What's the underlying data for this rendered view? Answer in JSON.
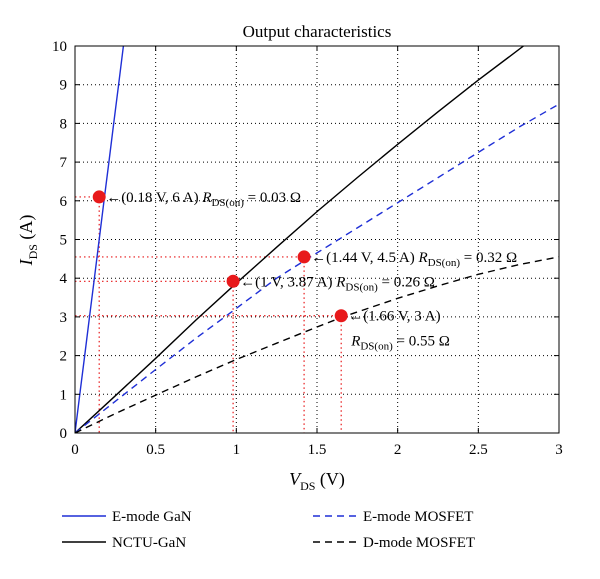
{
  "chart_data": {
    "type": "line",
    "title": "Output characteristics",
    "xlabel": {
      "main": "V",
      "sub": "DS",
      "unit": " (V)"
    },
    "ylabel": {
      "main": "I",
      "sub": "DS",
      "unit": " (A)"
    },
    "xlim": [
      0,
      3
    ],
    "ylim": [
      0,
      10
    ],
    "xticks": [
      "0",
      "0.5",
      "1",
      "1.5",
      "2",
      "2.5",
      "3"
    ],
    "yticks": [
      "0",
      "1",
      "2",
      "3",
      "4",
      "5",
      "6",
      "7",
      "8",
      "9",
      "10"
    ],
    "grid": true,
    "colors": {
      "blue": "#1f2fd6",
      "black": "#000000",
      "red": "#e8191b",
      "grid": "#000000"
    },
    "series": [
      {
        "name": "E-mode GaN",
        "color": "#1f2fd6",
        "dash": "solid",
        "x": [
          0,
          0.03,
          0.06,
          0.09,
          0.12,
          0.15,
          0.18,
          0.21,
          0.24,
          0.27,
          0.3
        ],
        "y": [
          0,
          1.0,
          2.0,
          3.0,
          4.0,
          5.0,
          6.0,
          7.0,
          8.0,
          9.0,
          10.0
        ]
      },
      {
        "name": "NCTU-GaN",
        "color": "#000000",
        "dash": "solid",
        "x": [
          0,
          0.25,
          0.5,
          0.75,
          1.0,
          1.25,
          1.5,
          1.75,
          2.0,
          2.25,
          2.5,
          2.78
        ],
        "y": [
          0,
          0.96,
          1.93,
          2.92,
          3.87,
          4.8,
          5.72,
          6.6,
          7.46,
          8.3,
          9.12,
          10.0
        ]
      },
      {
        "name": "E-mode MOSFET",
        "color": "#1f2fd6",
        "dash": "dashed",
        "x": [
          0,
          0.25,
          0.5,
          0.75,
          1.0,
          1.25,
          1.44,
          1.75,
          2.0,
          2.25,
          2.5,
          2.75,
          3.0
        ],
        "y": [
          0,
          0.82,
          1.64,
          2.45,
          3.22,
          4.0,
          4.5,
          5.3,
          5.95,
          6.6,
          7.25,
          7.9,
          8.5
        ]
      },
      {
        "name": "D-mode MOSFET",
        "color": "#000000",
        "dash": "dashed",
        "x": [
          0,
          0.25,
          0.5,
          0.75,
          1.0,
          1.25,
          1.5,
          1.66,
          2.0,
          2.25,
          2.5,
          2.75,
          3.0
        ],
        "y": [
          0,
          0.5,
          0.98,
          1.45,
          1.9,
          2.32,
          2.74,
          3.0,
          3.48,
          3.8,
          4.1,
          4.35,
          4.55
        ]
      }
    ],
    "points": [
      {
        "x": 0.15,
        "y": 6.1
      },
      {
        "x": 0.98,
        "y": 3.92
      },
      {
        "x": 1.42,
        "y": 4.55
      },
      {
        "x": 1.65,
        "y": 3.03
      }
    ],
    "annotations": [
      {
        "point": "(0.18 V, 6 A)",
        "rds_prefix": "R",
        "rds_sub": "DS(on)",
        "rds_value": " = 0.03 Ω"
      },
      {
        "point": "(1 V, 3.87 A)",
        "rds_prefix": "R",
        "rds_sub": "DS(on)",
        "rds_value": " = 0.26 Ω"
      },
      {
        "point": "(1.44 V, 4.5 A)",
        "rds_prefix": "R",
        "rds_sub": "DS(on)",
        "rds_value": " = 0.32 Ω"
      },
      {
        "point": "(1.66 V, 3 A)",
        "rds_prefix": "R",
        "rds_sub": "DS(on)",
        "rds_value": " = 0.55 Ω"
      }
    ],
    "arrow": "←",
    "legend": {
      "placement": "bottom",
      "items": [
        "E-mode GaN",
        "E-mode MOSFET",
        "NCTU-GaN",
        "D-mode MOSFET"
      ]
    }
  }
}
